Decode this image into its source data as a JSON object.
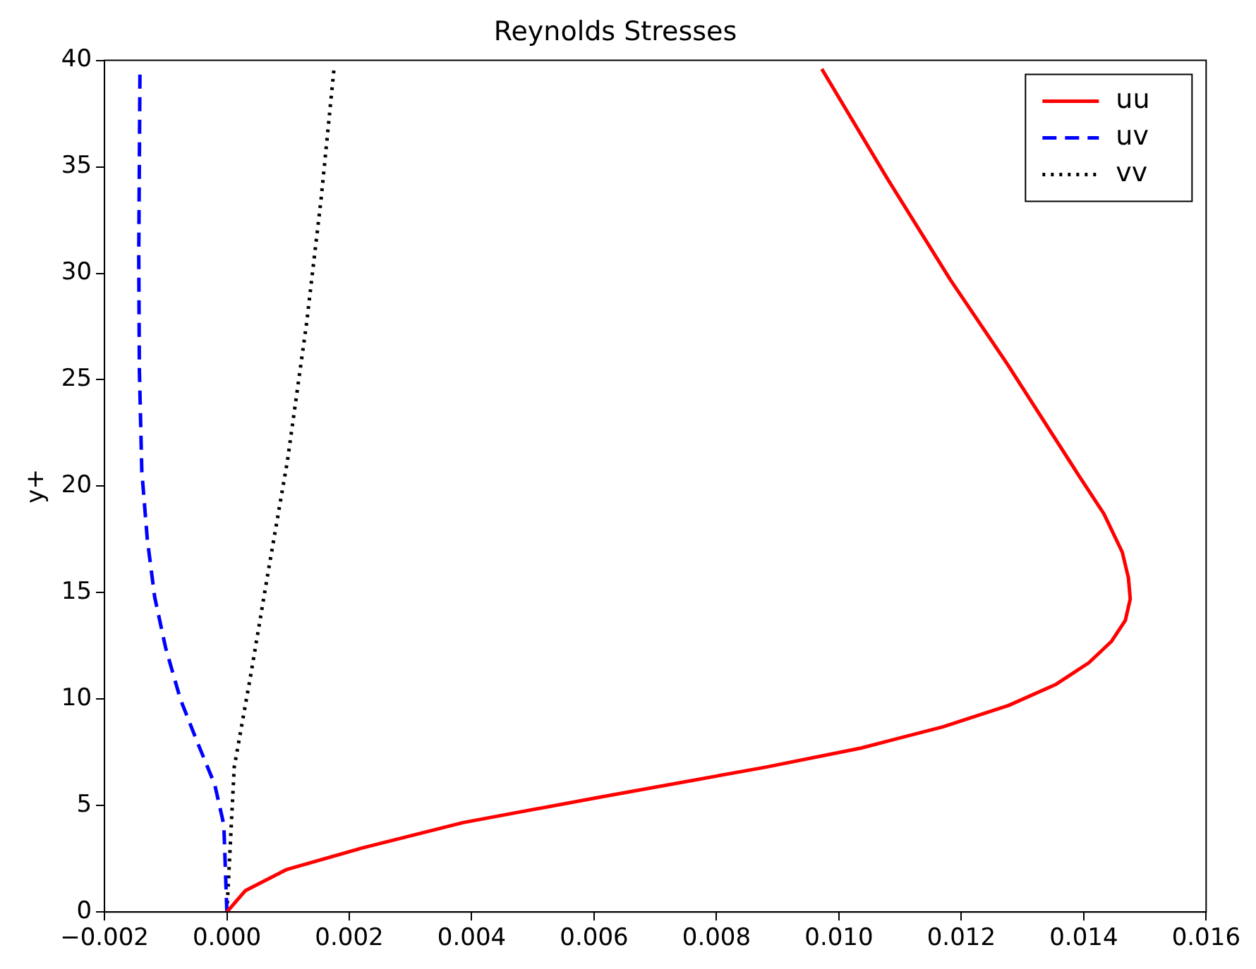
{
  "chart_data": {
    "type": "line",
    "title": "Reynolds Stresses",
    "ylabel": "y+",
    "xlim": [
      -0.002,
      0.016
    ],
    "xticks": [
      {
        "value": -0.002,
        "label": "−0.002"
      },
      {
        "value": 0,
        "label": "0.000"
      },
      {
        "value": 0.002,
        "label": "0.002"
      },
      {
        "value": 0.004,
        "label": "0.004"
      },
      {
        "value": 0.006,
        "label": "0.006"
      },
      {
        "value": 0.008,
        "label": "0.008"
      },
      {
        "value": 0.01,
        "label": "0.010"
      },
      {
        "value": 0.012,
        "label": "0.012"
      },
      {
        "value": 0.014,
        "label": "0.014"
      },
      {
        "value": 0.016,
        "label": "0.016"
      }
    ],
    "ylim": [
      0,
      40
    ],
    "yticks": [
      0,
      5,
      10,
      15,
      20,
      25,
      30,
      35,
      40
    ],
    "grid": false,
    "legend": "top right",
    "marker": "none",
    "series": [
      {
        "name": "uu",
        "color": "#ff0000",
        "line_style": "solid",
        "x": [
          0,
          0.0003,
          0.00098,
          0.0022,
          0.00386,
          0.0061,
          0.0088,
          0.01036,
          0.0117,
          0.01277,
          0.01355,
          0.01408,
          0.01445,
          0.01468,
          0.01476,
          0.01473,
          0.01463,
          0.01433,
          0.01392,
          0.01276,
          0.01182,
          0.01078,
          0.00972
        ],
        "values": [
          0,
          1,
          2,
          3,
          4.2,
          5.4,
          6.8,
          7.7,
          8.7,
          9.7,
          10.7,
          11.7,
          12.7,
          13.7,
          14.7,
          15.7,
          16.9,
          18.7,
          20.5,
          25.7,
          29.7,
          34.5,
          39.6
        ]
      },
      {
        "name": "uv",
        "color": "#0000ff",
        "line_style": "dashed",
        "x": [
          0,
          -5e-05,
          -0.0002,
          -0.0005,
          -0.00076,
          -0.001,
          -0.00118,
          -0.0013,
          -0.00139,
          -0.00143,
          -0.00144,
          -0.00142
        ],
        "values": [
          0,
          4.1,
          6,
          8.1,
          10,
          12.4,
          14.8,
          17.5,
          20.7,
          25.5,
          30.8,
          39.6
        ]
      },
      {
        "name": "vv",
        "color": "#000000",
        "line_style": "dotted",
        "x": [
          0,
          0.00012,
          0.0004,
          0.00067,
          0.00099,
          0.0013,
          0.00154,
          0.00175
        ],
        "values": [
          0,
          6.8,
          11.3,
          15.9,
          21.2,
          27.6,
          33.5,
          39.6
        ]
      }
    ]
  }
}
